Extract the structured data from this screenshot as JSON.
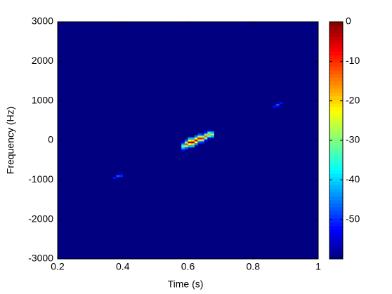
{
  "chart_data": {
    "type": "heatmap",
    "xlabel": "Time (s)",
    "ylabel": "Frequency (Hz)",
    "xlim": [
      0.2,
      1
    ],
    "xticks": [
      0.2,
      0.4,
      0.6,
      0.8,
      1
    ],
    "ylim": [
      -3000,
      3000
    ],
    "yticks": [
      -3000,
      -2000,
      -1000,
      0,
      1000,
      2000,
      3000
    ],
    "clim": [
      -60,
      0
    ],
    "cticks": [
      -50,
      -40,
      -30,
      -20,
      -10,
      0
    ],
    "colormap": "jet",
    "background": -60,
    "x_step": 0.01,
    "y_step": 50,
    "x": [
      0.585,
      0.585,
      0.585,
      0.585,
      0.585,
      0.595,
      0.595,
      0.595,
      0.595,
      0.595,
      0.605,
      0.605,
      0.605,
      0.605,
      0.605,
      0.615,
      0.615,
      0.615,
      0.615,
      0.615,
      0.625,
      0.625,
      0.625,
      0.625,
      0.625,
      0.635,
      0.635,
      0.635,
      0.635,
      0.635,
      0.645,
      0.645,
      0.645,
      0.645,
      0.645,
      0.655,
      0.655,
      0.655,
      0.655,
      0.655,
      0.665,
      0.665,
      0.665,
      0.665,
      0.665,
      0.675,
      0.675,
      0.675,
      0.375,
      0.385,
      0.395,
      0.395,
      0.865,
      0.875,
      0.885,
      0.875
    ],
    "y": [
      -150,
      -100,
      -200,
      -250,
      -50,
      -100,
      -50,
      -150,
      -200,
      0,
      -50,
      0,
      -100,
      -150,
      50,
      -50,
      0,
      -100,
      50,
      -150,
      0,
      50,
      -50,
      100,
      -100,
      50,
      100,
      0,
      150,
      -50,
      50,
      100,
      0,
      150,
      -50,
      100,
      150,
      50,
      200,
      0,
      150,
      200,
      100,
      250,
      50,
      150,
      200,
      100,
      -950,
      -900,
      -900,
      -850,
      850,
      900,
      950,
      850
    ],
    "values": [
      -30,
      -42,
      -42,
      -52,
      -52,
      -12,
      -30,
      -30,
      -48,
      -48,
      -2,
      -22,
      -22,
      -42,
      -42,
      -1,
      -20,
      -20,
      -42,
      -42,
      -4,
      -24,
      -24,
      -45,
      -45,
      -8,
      -28,
      -28,
      -48,
      -48,
      -10,
      -30,
      -30,
      -50,
      -50,
      -14,
      -32,
      -32,
      -52,
      -52,
      -18,
      -35,
      -35,
      -54,
      -54,
      -28,
      -42,
      -42,
      -52,
      -48,
      -50,
      -55,
      -52,
      -48,
      -52,
      -55
    ]
  }
}
